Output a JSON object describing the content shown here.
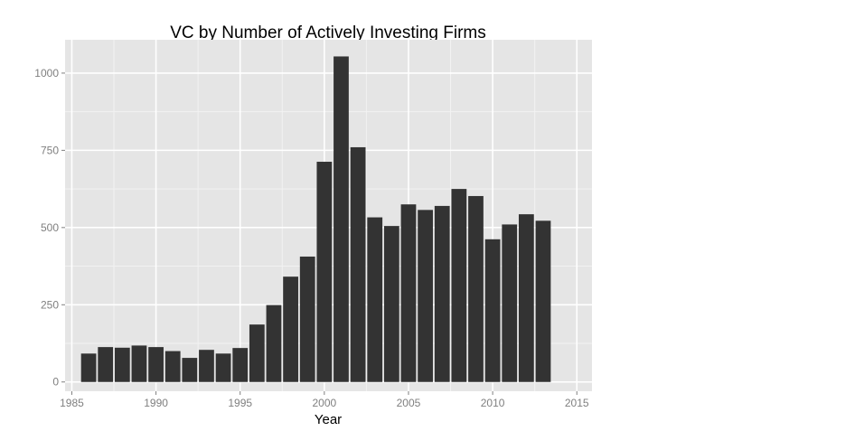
{
  "chart_data": {
    "type": "bar",
    "title": "VC by Number of Actively Investing Firms",
    "xlabel": "Year",
    "ylabel": "",
    "x": [
      1986,
      1987,
      1988,
      1989,
      1990,
      1991,
      1992,
      1993,
      1994,
      1995,
      1996,
      1997,
      1998,
      1999,
      2000,
      2001,
      2002,
      2003,
      2004,
      2005,
      2006,
      2007,
      2008,
      2009,
      2010,
      2011,
      2012,
      2013
    ],
    "values": [
      92,
      113,
      111,
      118,
      113,
      100,
      78,
      104,
      92,
      110,
      186,
      249,
      341,
      406,
      713,
      1054,
      760,
      533,
      505,
      575,
      557,
      570,
      625,
      602,
      462,
      510,
      543,
      522
    ],
    "xlim": [
      1984.6,
      2015.9
    ],
    "ylim": [
      -30,
      1108
    ],
    "xticks": [
      1985,
      1990,
      1995,
      2000,
      2005,
      2010,
      2015
    ],
    "yticks": [
      0,
      250,
      500,
      750,
      1000
    ],
    "xtick_labels": [
      "1985",
      "1990",
      "1995",
      "2000",
      "2005",
      "2010",
      "2015"
    ],
    "ytick_labels": [
      "0",
      "250",
      "500",
      "750",
      "1000"
    ],
    "grid": true,
    "colors": {
      "bar": "#333333",
      "panel": "#e5e5e5",
      "grid_major": "#ffffff",
      "grid_minor": "#f2f2f2",
      "tick_label": "#7f7f7f"
    }
  }
}
